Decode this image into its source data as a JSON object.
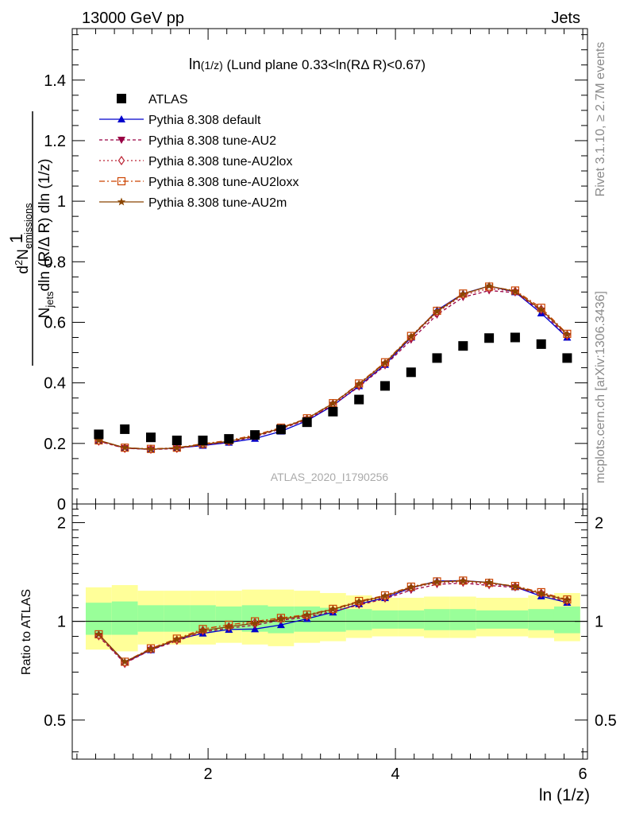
{
  "header": {
    "left": "13000 GeV pp",
    "right": "Jets"
  },
  "side_labels": {
    "rivet": "Rivet 3.1.10, ≥ 2.7M events",
    "mcplots": "mcplots.cern.ch [arXiv:1306.3436]"
  },
  "chart_data": {
    "type": "scatter",
    "title": "ln(1/z) (Lund plane 0.33<ln(RΔ R)<0.67)",
    "title_parts": {
      "main": "ln",
      "sub": "(1/z)",
      "rest": " (Lund plane 0.33<ln(RΔ R)<0.67)"
    },
    "watermark": "ATLAS_2020_I1790256",
    "xlabel": "ln (1/z)",
    "ylabel": "1/N_jets dN_emissions/dln(R/ΔR) dln(1/z)",
    "ylabel_parts": {
      "one": "1",
      "N": "N",
      "jets": "jets",
      "d": "d",
      "sq": "2",
      "Nem": "N",
      "em": "emissions",
      "den": "dln (R/Δ R) dln (1/z)"
    },
    "ratio_ylabel": "Ratio to ATLAS",
    "xlim": [
      0.55,
      6.05
    ],
    "ylim": [
      0,
      1.57
    ],
    "ratio_ylim": [
      0.38,
      2.28
    ],
    "x_ticks": [
      2,
      4,
      6
    ],
    "y_ticks": [
      0,
      0.2,
      0.4,
      0.6,
      0.8,
      1,
      1.2,
      1.4
    ],
    "ratio_ticks": [
      0.5,
      1,
      2
    ],
    "legend_position": "top-left",
    "x": [
      0.833,
      1.111,
      1.389,
      1.667,
      1.944,
      2.222,
      2.5,
      2.778,
      3.056,
      3.333,
      3.611,
      3.889,
      4.167,
      4.444,
      4.722,
      5.0,
      5.278,
      5.556,
      5.833
    ],
    "data": {
      "name": "ATLAS",
      "values": [
        0.23,
        0.247,
        0.22,
        0.21,
        0.21,
        0.215,
        0.228,
        0.246,
        0.27,
        0.305,
        0.345,
        0.39,
        0.435,
        0.482,
        0.522,
        0.548,
        0.55,
        0.528,
        0.482
      ]
    },
    "band_inner": {
      "lo": [
        0.91,
        0.91,
        0.93,
        0.93,
        0.93,
        0.94,
        0.93,
        0.92,
        0.93,
        0.93,
        0.94,
        0.95,
        0.95,
        0.94,
        0.94,
        0.95,
        0.95,
        0.94,
        0.92
      ],
      "hi": [
        1.14,
        1.15,
        1.12,
        1.12,
        1.12,
        1.11,
        1.12,
        1.11,
        1.11,
        1.1,
        1.09,
        1.08,
        1.08,
        1.09,
        1.09,
        1.08,
        1.08,
        1.09,
        1.11
      ]
    },
    "band_outer": {
      "lo": [
        0.82,
        0.81,
        0.85,
        0.85,
        0.85,
        0.86,
        0.85,
        0.84,
        0.86,
        0.87,
        0.89,
        0.9,
        0.9,
        0.89,
        0.89,
        0.9,
        0.9,
        0.89,
        0.87
      ],
      "hi": [
        1.27,
        1.29,
        1.24,
        1.24,
        1.24,
        1.24,
        1.25,
        1.25,
        1.24,
        1.22,
        1.2,
        1.18,
        1.18,
        1.19,
        1.19,
        1.18,
        1.18,
        1.2,
        1.22
      ]
    },
    "series": [
      {
        "name": "Pythia 8.308 default",
        "color": "#0000cc",
        "dash": "",
        "marker": "triangle-up",
        "values": [
          0.21,
          0.185,
          0.18,
          0.185,
          0.193,
          0.203,
          0.216,
          0.24,
          0.275,
          0.325,
          0.39,
          0.46,
          0.55,
          0.64,
          0.695,
          0.72,
          0.7,
          0.63,
          0.55
        ]
      },
      {
        "name": "Pythia 8.308 tune-AU2",
        "color": "#990044",
        "dash": "4,3",
        "marker": "triangle-down",
        "values": [
          0.207,
          0.184,
          0.18,
          0.183,
          0.195,
          0.205,
          0.222,
          0.248,
          0.278,
          0.327,
          0.387,
          0.457,
          0.542,
          0.625,
          0.683,
          0.705,
          0.698,
          0.638,
          0.553
        ]
      },
      {
        "name": "Pythia 8.308 tune-AU2lox",
        "color": "#bb2233",
        "dash": "2,3",
        "marker": "diamond-open",
        "values": [
          0.208,
          0.184,
          0.181,
          0.184,
          0.197,
          0.207,
          0.226,
          0.25,
          0.28,
          0.33,
          0.393,
          0.463,
          0.55,
          0.632,
          0.69,
          0.712,
          0.702,
          0.643,
          0.558
        ]
      },
      {
        "name": "Pythia 8.308 tune-AU2loxx",
        "color": "#cc4400",
        "dash": "7,3,2,3",
        "marker": "square-open",
        "values": [
          0.21,
          0.186,
          0.182,
          0.186,
          0.199,
          0.21,
          0.228,
          0.252,
          0.283,
          0.333,
          0.398,
          0.468,
          0.555,
          0.638,
          0.695,
          0.718,
          0.705,
          0.648,
          0.562
        ]
      },
      {
        "name": "Pythia 8.308 tune-AU2m",
        "color": "#8b4500",
        "dash": "",
        "marker": "star",
        "values": [
          0.21,
          0.186,
          0.181,
          0.185,
          0.197,
          0.207,
          0.225,
          0.25,
          0.282,
          0.332,
          0.396,
          0.466,
          0.553,
          0.636,
          0.693,
          0.72,
          0.702,
          0.642,
          0.56
        ]
      }
    ]
  }
}
